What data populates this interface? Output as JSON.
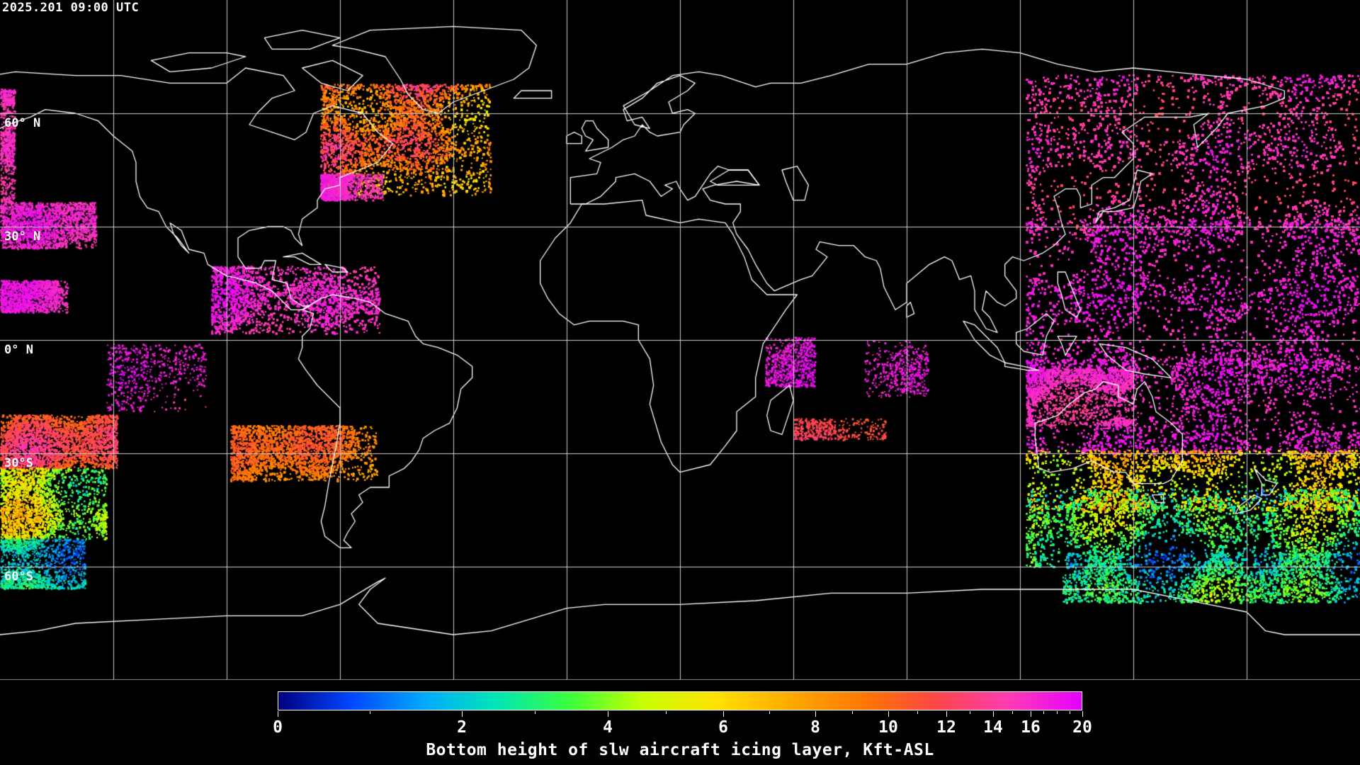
{
  "timestamp": "2025.201 09:00 UTC",
  "lat_labels": [
    "60° N",
    "30° N",
    "0° N",
    "30°S",
    "60°S"
  ],
  "colorbar": {
    "title": "Bottom height of slw aircraft icing layer, Kft-ASL",
    "min": 0,
    "max": 20,
    "tick_labels": [
      "0",
      "2",
      "4",
      "6",
      "8",
      "10",
      "12",
      "14",
      "16",
      "20"
    ],
    "tick_values": [
      0,
      2,
      4,
      6,
      8,
      10,
      12,
      14,
      16,
      20
    ],
    "minor_tick_values": [
      1,
      3,
      5,
      7,
      9,
      11,
      13,
      15,
      17,
      18,
      19
    ],
    "scale": "nonlinear",
    "colors": [
      "#00007f",
      "#0046ff",
      "#00aaff",
      "#00e6b4",
      "#3cff3c",
      "#c8ff00",
      "#ffe100",
      "#ffaa00",
      "#ff7800",
      "#ff4646",
      "#ff3cb4",
      "#e600ff"
    ]
  },
  "map": {
    "projection": "equirectangular",
    "background": "#000000",
    "coastline_color": "#ffffff",
    "grid_color": "#cccccc",
    "grid_spacing_deg": 30
  }
}
